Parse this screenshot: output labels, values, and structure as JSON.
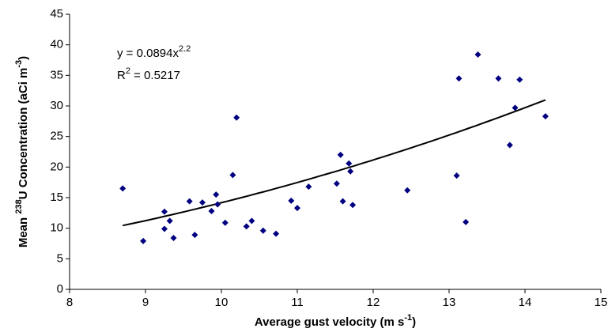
{
  "chart_data": {
    "type": "scatter",
    "x_label": [
      "Average gust velocity (m s",
      "-1",
      ")"
    ],
    "y_label": [
      "Mean ",
      "238",
      "U Concentration (aCi m",
      "-3",
      ")"
    ],
    "color": "#000080",
    "x": [
      8.7,
      8.97,
      9.25,
      9.25,
      9.32,
      9.37,
      9.58,
      9.65,
      9.75,
      9.87,
      9.93,
      9.95,
      10.05,
      10.15,
      10.2,
      10.33,
      10.4,
      10.55,
      10.72,
      10.92,
      11.0,
      11.15,
      11.52,
      11.57,
      11.6,
      11.68,
      11.7,
      11.73,
      12.45,
      13.1,
      13.13,
      13.22,
      13.38,
      13.65,
      13.8,
      13.87,
      13.93,
      14.27
    ],
    "values": [
      16.5,
      7.9,
      12.7,
      9.9,
      11.2,
      8.4,
      14.4,
      8.9,
      14.2,
      12.8,
      15.5,
      13.9,
      10.9,
      18.7,
      28.1,
      10.3,
      11.2,
      9.6,
      9.1,
      14.5,
      13.3,
      16.8,
      17.3,
      22,
      14.4,
      20.6,
      19.3,
      13.8,
      16.2,
      18.6,
      34.5,
      11,
      38.4,
      34.5,
      23.6,
      29.7,
      34.3,
      28.3
    ],
    "trendline": {
      "equation_prefix": "y = ",
      "coefficient": 0.0894,
      "variable": "x",
      "exponent": 2.2,
      "r_symbol": "R",
      "r_power": "2",
      "r_equals": " = ",
      "r_squared": 0.5217,
      "color": "#000000"
    },
    "xlim": [
      8,
      15
    ],
    "xticks": [
      8,
      9,
      10,
      11,
      12,
      13,
      14,
      15
    ],
    "ylim": [
      0,
      45
    ],
    "yticks": [
      0,
      5,
      10,
      15,
      20,
      25,
      30,
      35,
      40,
      45
    ]
  }
}
